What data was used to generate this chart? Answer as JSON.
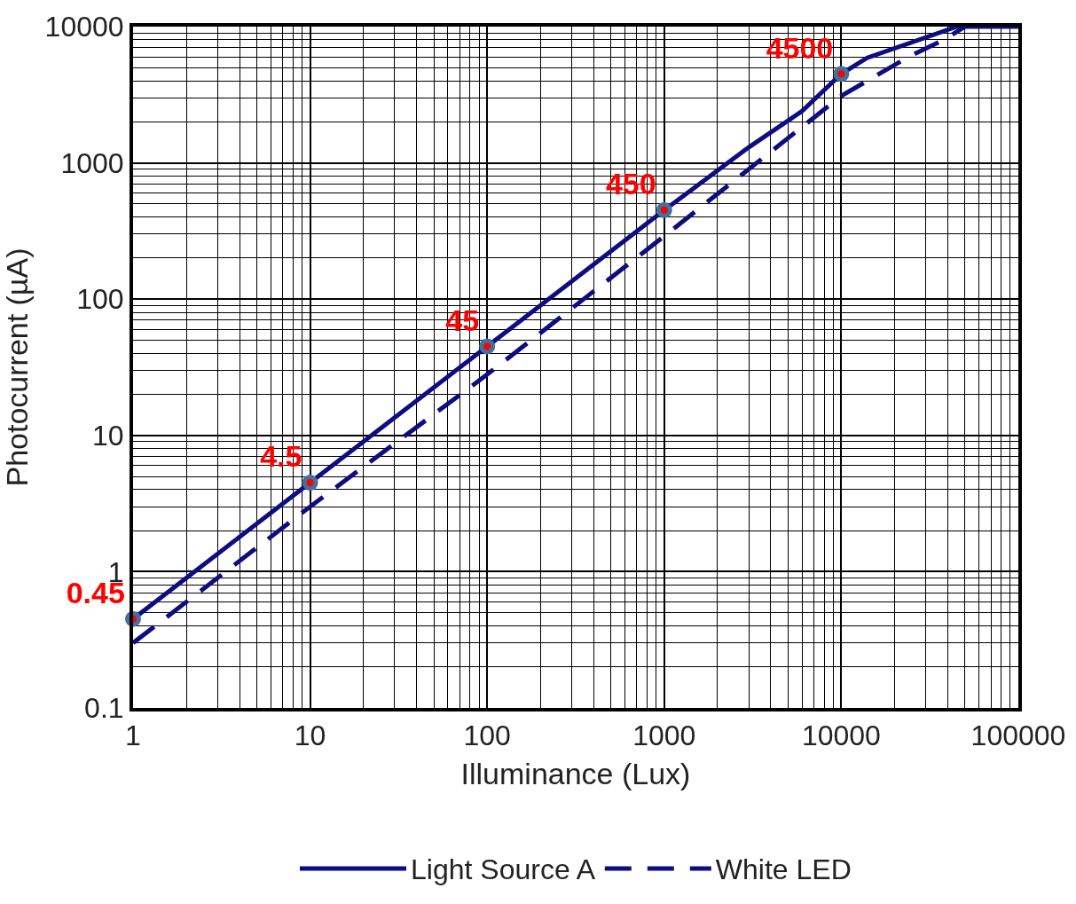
{
  "chart_data": {
    "type": "line",
    "xlabel": "Illuminance (Lux)",
    "ylabel": "Photocurrent (µA)",
    "log": "xy",
    "grid": true,
    "legend": "bottom",
    "xlim": [
      1,
      100000
    ],
    "xticks": [
      1,
      10,
      100,
      1000,
      10000,
      100000
    ],
    "ylim": [
      0.1,
      10000
    ],
    "yticks": [
      0.1,
      1,
      10,
      100,
      1000,
      10000
    ],
    "series": [
      {
        "name": "Light Source A",
        "color": "#0d0d80",
        "line_style": "solid",
        "x": [
          1,
          10,
          100,
          1000,
          3000,
          6000,
          10000,
          14000,
          45000,
          100000
        ],
        "values": [
          0.45,
          4.5,
          45,
          450,
          1300,
          2400,
          4500,
          5900,
          10000,
          10000
        ]
      },
      {
        "name": "White LED",
        "color": "#0d0d80",
        "line_style": "dashed",
        "x": [
          1,
          10,
          100,
          1000,
          10000,
          24000,
          38000,
          50000
        ],
        "values": [
          0.3,
          3,
          28,
          290,
          3100,
          6000,
          8000,
          10000
        ]
      },
      {
        "type": "scatter",
        "color": "#ff0000",
        "marker": "circle",
        "x": [
          1,
          10,
          100,
          1000,
          10000
        ],
        "values": [
          0.45,
          4.5,
          45,
          450,
          4500
        ],
        "value_labels": [
          "0.45",
          "4.5",
          "45",
          "450",
          "4500"
        ]
      }
    ]
  }
}
